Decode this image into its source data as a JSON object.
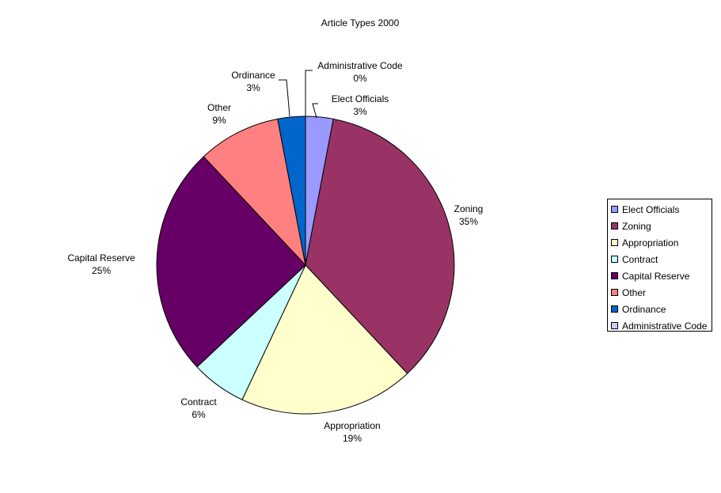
{
  "chart_data": {
    "type": "pie",
    "title": "Article Types 2000",
    "legend_position": "right",
    "slices": [
      {
        "label": "Elect Officials",
        "value": 3,
        "pct_label": "3%",
        "color": "#9999ff"
      },
      {
        "label": "Zoning",
        "value": 35,
        "pct_label": "35%",
        "color": "#993366"
      },
      {
        "label": "Appropriation",
        "value": 19,
        "pct_label": "19%",
        "color": "#ffffcc"
      },
      {
        "label": "Contract",
        "value": 6,
        "pct_label": "6%",
        "color": "#ccffff"
      },
      {
        "label": "Capital Reserve",
        "value": 25,
        "pct_label": "25%",
        "color": "#660066"
      },
      {
        "label": "Other",
        "value": 9,
        "pct_label": "9%",
        "color": "#ff8080"
      },
      {
        "label": "Ordinance",
        "value": 3,
        "pct_label": "3%",
        "color": "#0066cc"
      },
      {
        "label": "Administrative Code",
        "value": 0,
        "pct_label": "0%",
        "color": "#ccccff"
      }
    ]
  }
}
